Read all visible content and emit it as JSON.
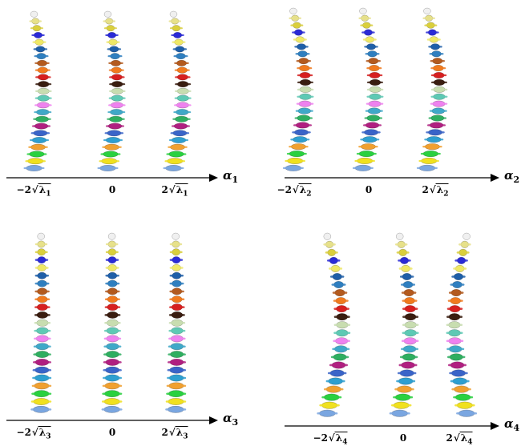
{
  "palette": [
    "#f0f0f0",
    "#e6e08a",
    "#d9cf3c",
    "#2a2ad6",
    "#efe766",
    "#1f5fa8",
    "#2f7fbf",
    "#b35a1e",
    "#f07a1e",
    "#d62020",
    "#3a1d10",
    "#c8ddb0",
    "#5ec9b4",
    "#ee82ee",
    "#40a8c8",
    "#2fae60",
    "#b02080",
    "#3a64c8",
    "#2e9fd0",
    "#f0a030",
    "#2ad040",
    "#f0e020",
    "#7aa6e0"
  ],
  "panels": [
    {
      "alpha": "α",
      "alpha_sub": "1",
      "ticks": [
        {
          "coef": "−2",
          "rad": "λ",
          "sub": "1"
        },
        {
          "coef": "0",
          "rad": "",
          "sub": ""
        },
        {
          "coef": "2",
          "rad": "λ",
          "sub": "1"
        }
      ]
    },
    {
      "alpha": "α",
      "alpha_sub": "2",
      "ticks": [
        {
          "coef": "−2",
          "rad": "λ",
          "sub": "2"
        },
        {
          "coef": "0",
          "rad": "",
          "sub": ""
        },
        {
          "coef": "2",
          "rad": "λ",
          "sub": "2"
        }
      ]
    },
    {
      "alpha": "α",
      "alpha_sub": "3",
      "ticks": [
        {
          "coef": "−2",
          "rad": "λ",
          "sub": "3"
        },
        {
          "coef": "0",
          "rad": "",
          "sub": ""
        },
        {
          "coef": "2",
          "rad": "λ",
          "sub": "3"
        }
      ]
    },
    {
      "alpha": "α",
      "alpha_sub": "4",
      "ticks": [
        {
          "coef": "−2",
          "rad": "λ",
          "sub": "4"
        },
        {
          "coef": "0",
          "rad": "",
          "sub": ""
        },
        {
          "coef": "2",
          "rad": "λ",
          "sub": "4"
        }
      ]
    }
  ]
}
